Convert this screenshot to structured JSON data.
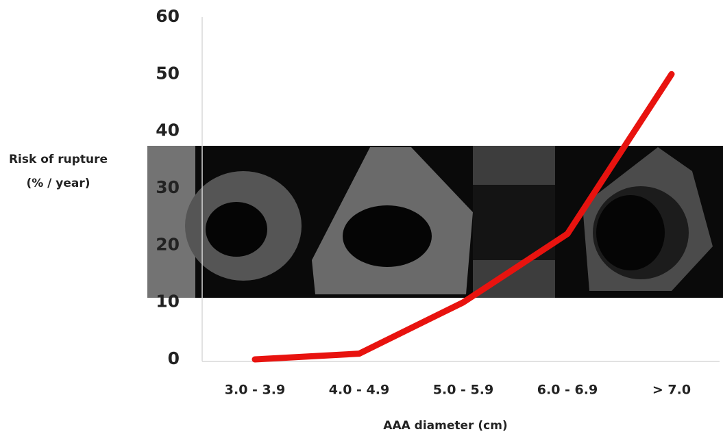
{
  "chart_data": {
    "type": "line",
    "y_label": [
      "Risk of rupture",
      "(% / year)"
    ],
    "x_label": "AAA diameter (cm)",
    "categories": [
      "3.0 - 3.9",
      "4.0 - 4.9",
      "5.0 - 5.9",
      "6.0 - 6.9",
      "> 7.0"
    ],
    "values": [
      0,
      1,
      10,
      22,
      50
    ],
    "color": "#e8130f",
    "ylim": [
      0,
      60
    ],
    "yticks": [
      0,
      10,
      20,
      30,
      40,
      50,
      60
    ]
  }
}
